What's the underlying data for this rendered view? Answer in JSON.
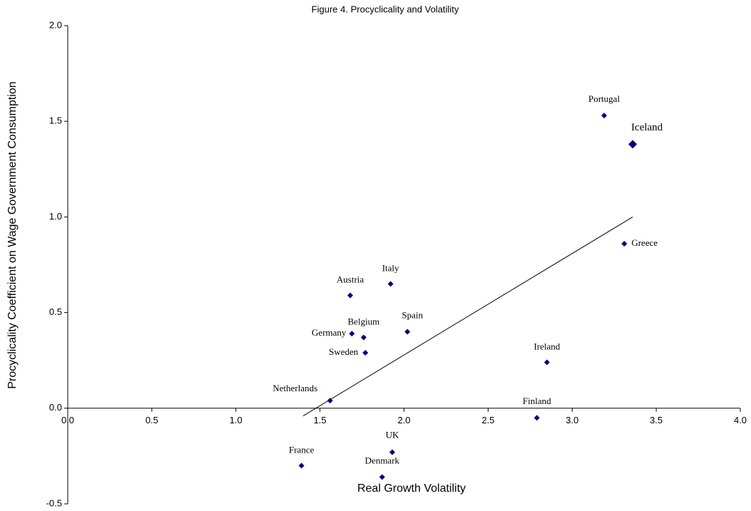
{
  "chart_data": {
    "type": "scatter",
    "title": "Figure 4. Procyclicality and Volatility",
    "x_label": "Real Growth Volatility",
    "y_label": "Procyclicality Coefficient on Wage Government Consumption",
    "labels": [
      "Portugal",
      "Iceland",
      "Greece",
      "Italy",
      "Austria",
      "Spain",
      "Germany",
      "Belgium",
      "Sweden",
      "Ireland",
      "Netherlands",
      "Finland",
      "UK",
      "France",
      "Denmark"
    ],
    "x": [
      3.19,
      3.36,
      3.31,
      1.92,
      1.68,
      2.02,
      1.69,
      1.76,
      1.77,
      2.85,
      1.56,
      2.79,
      1.93,
      1.39,
      1.87
    ],
    "values": [
      1.53,
      1.38,
      0.86,
      0.65,
      0.59,
      0.4,
      0.39,
      0.37,
      0.29,
      0.24,
      0.04,
      -0.05,
      -0.23,
      -0.3,
      -0.36
    ],
    "highlight": "Iceland",
    "color": "#000080",
    "trendline": {
      "x": [
        1.4,
        3.36
      ],
      "y": [
        -0.04,
        1.0
      ]
    },
    "xlim": [
      0,
      4.0
    ],
    "ylim": [
      -0.5,
      2.0
    ],
    "xticks": [
      {
        "value": 0,
        "label": "0.0"
      },
      {
        "value": 0.5,
        "label": "0.5"
      },
      {
        "value": 1.0,
        "label": "1.0"
      },
      {
        "value": 1.5,
        "label": "1.5"
      },
      {
        "value": 2.0,
        "label": "2.0"
      },
      {
        "value": 2.5,
        "label": "2.5"
      },
      {
        "value": 3.0,
        "label": "3.0"
      },
      {
        "value": 3.5,
        "label": "3.5"
      },
      {
        "value": 4.0,
        "label": "4.0"
      }
    ],
    "yticks": [
      {
        "value": -0.5,
        "label": "-0.5"
      },
      {
        "value": 0,
        "label": "0.0"
      },
      {
        "value": 0.5,
        "label": "0.5"
      },
      {
        "value": 1.0,
        "label": "1.0"
      },
      {
        "value": 1.5,
        "label": "1.5"
      },
      {
        "value": 2.0,
        "label": "2.0"
      }
    ]
  }
}
